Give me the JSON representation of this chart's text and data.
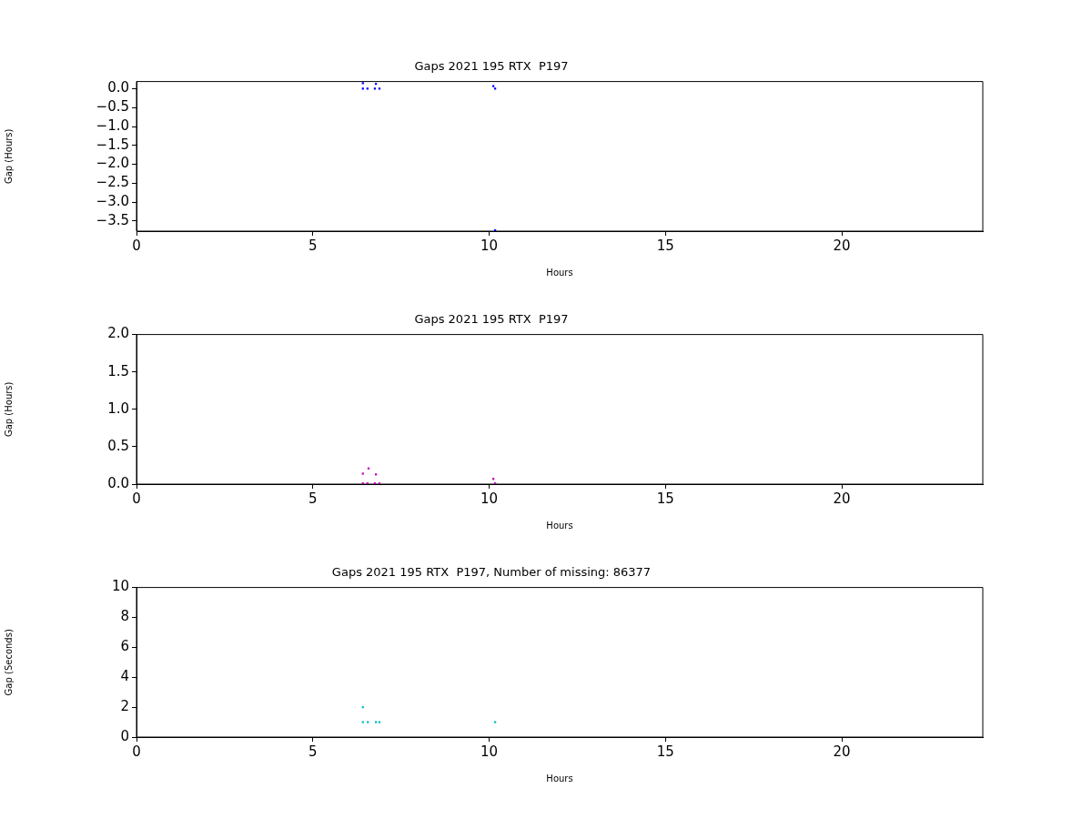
{
  "chart_data": [
    {
      "type": "scatter",
      "title": "Gaps 2021 195 RTX  P197",
      "xlabel": "Hours",
      "ylabel": "Gap (Hours)",
      "xlim": [
        0,
        24
      ],
      "xticks": [
        0,
        5,
        10,
        15,
        20
      ],
      "ylim": [
        -3.77,
        0.19
      ],
      "yticks": [
        {
          "value": -3.5,
          "label": "−3.5"
        },
        {
          "value": -3,
          "label": "−3.0"
        },
        {
          "value": -2.5,
          "label": "−2.5"
        },
        {
          "value": -2,
          "label": "−2.0"
        },
        {
          "value": -1.5,
          "label": "−1.5"
        },
        {
          "value": -1,
          "label": "−1.0"
        },
        {
          "value": -0.5,
          "label": "−0.5"
        },
        {
          "value": 0,
          "label": "0.0"
        }
      ],
      "grid": false,
      "legend": false,
      "marker": "square",
      "series": [
        {
          "color": "#0000ff",
          "x": [
            6.42,
            6.42,
            6.55,
            6.76,
            6.79,
            6.89,
            10.12,
            10.17,
            10.17
          ],
          "values": [
            0.15,
            0.0,
            0.0,
            0.0,
            0.13,
            0.0,
            0.07,
            0.0,
            -3.75
          ]
        }
      ]
    },
    {
      "type": "scatter",
      "title": "Gaps 2021 195 RTX  P197",
      "xlabel": "Hours",
      "ylabel": "Gap (Hours)",
      "xlim": [
        0,
        24
      ],
      "xticks": [
        0,
        5,
        10,
        15,
        20
      ],
      "ylim": [
        0,
        2
      ],
      "yticks": [
        {
          "value": 0,
          "label": "0.0"
        },
        0.5,
        {
          "value": 1,
          "label": "1.0"
        },
        1.5,
        {
          "value": 2,
          "label": "2.0"
        }
      ],
      "grid": false,
      "legend": false,
      "marker": "square",
      "series": [
        {
          "color": "#bf00bf",
          "x": [
            6.42,
            6.42,
            6.55,
            6.58,
            6.76,
            6.79,
            6.89,
            10.12,
            10.17
          ],
          "values": [
            0.14,
            0.01,
            0.01,
            0.21,
            0.01,
            0.13,
            0.01,
            0.07,
            0.01
          ]
        }
      ]
    },
    {
      "type": "scatter",
      "title": "Gaps 2021 195 RTX  P197, Number of missing: 86377",
      "xlabel": "Hours",
      "ylabel": "Gap (Seconds)",
      "xlim": [
        0,
        24
      ],
      "xticks": [
        0,
        5,
        10,
        15,
        20
      ],
      "ylim": [
        0,
        10
      ],
      "yticks": [
        0,
        2,
        4,
        6,
        8,
        10
      ],
      "grid": false,
      "legend": false,
      "marker": "square",
      "series": [
        {
          "color": "#00bfbf",
          "x": [
            6.42,
            6.42,
            6.56,
            6.79,
            6.89,
            10.17
          ],
          "values": [
            2,
            1,
            1,
            1,
            1,
            1
          ]
        }
      ]
    }
  ]
}
